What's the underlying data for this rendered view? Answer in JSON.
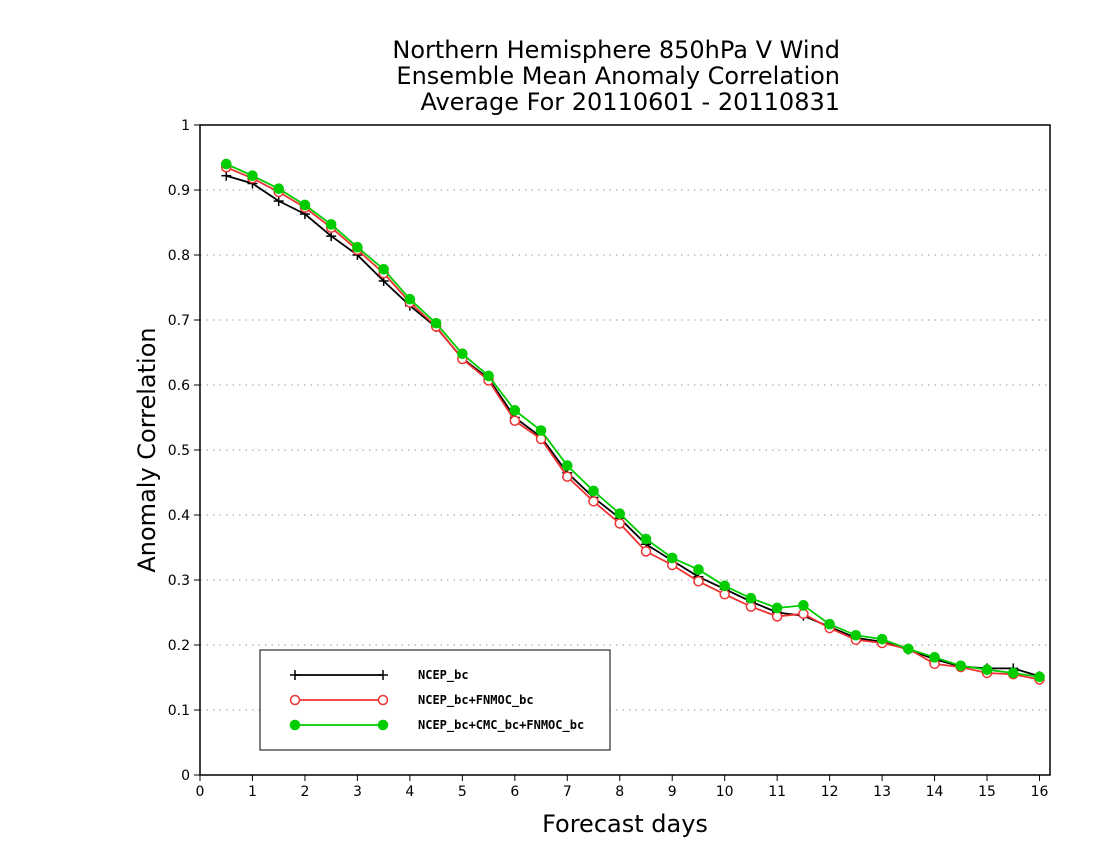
{
  "chart_data": {
    "type": "line",
    "title_lines": [
      "Northern Hemisphere 850hPa V Wind",
      "Ensemble Mean Anomaly Correlation",
      "Average For 20110601 - 20110831"
    ],
    "xlabel": "Forecast days",
    "ylabel": "Anomaly Correlation",
    "xlim": [
      0,
      16.2
    ],
    "ylim": [
      0,
      1
    ],
    "xticks": [
      "0",
      "1",
      "2",
      "3",
      "4",
      "5",
      "6",
      "7",
      "8",
      "9",
      "10",
      "11",
      "12",
      "13",
      "14",
      "15",
      "16"
    ],
    "yticks": [
      "0",
      "0.1",
      "0.2",
      "0.3",
      "0.4",
      "0.5",
      "0.6",
      "0.7",
      "0.8",
      "0.9",
      "1"
    ],
    "grid": "horizontal dotted",
    "legend_position": "bottom-left",
    "x": [
      0.5,
      1,
      1.5,
      2,
      2.5,
      3,
      3.5,
      4,
      4.5,
      5,
      5.5,
      6,
      6.5,
      7,
      7.5,
      8,
      8.5,
      9,
      9.5,
      10,
      10.5,
      11,
      11.5,
      12,
      12.5,
      13,
      13.5,
      14,
      14.5,
      15,
      15.5,
      16
    ],
    "series": [
      {
        "name": "NCEP_bc",
        "color": "#000000",
        "marker": "plus",
        "values": [
          0.922,
          0.91,
          0.883,
          0.863,
          0.829,
          0.8,
          0.76,
          0.722,
          0.689,
          0.641,
          0.61,
          0.55,
          0.52,
          0.465,
          0.427,
          0.395,
          0.355,
          0.33,
          0.305,
          0.286,
          0.267,
          0.25,
          0.245,
          0.228,
          0.211,
          0.205,
          0.193,
          0.178,
          0.167,
          0.164,
          0.164,
          0.152
        ]
      },
      {
        "name": "NCEP_bc+FNMOC_bc",
        "color": "#ee3333",
        "marker": "open-circle",
        "values": [
          0.935,
          0.918,
          0.897,
          0.873,
          0.842,
          0.808,
          0.772,
          0.727,
          0.69,
          0.64,
          0.607,
          0.545,
          0.517,
          0.459,
          0.421,
          0.387,
          0.344,
          0.323,
          0.298,
          0.278,
          0.259,
          0.244,
          0.248,
          0.226,
          0.208,
          0.203,
          0.194,
          0.171,
          0.166,
          0.157,
          0.155,
          0.147
        ]
      },
      {
        "name": "NCEP_bc+CMC_bc+FNMOC_bc",
        "color": "#00cc00",
        "marker": "filled-circle",
        "values": [
          0.94,
          0.922,
          0.902,
          0.877,
          0.847,
          0.812,
          0.778,
          0.732,
          0.695,
          0.648,
          0.614,
          0.561,
          0.53,
          0.476,
          0.437,
          0.402,
          0.363,
          0.334,
          0.316,
          0.291,
          0.272,
          0.257,
          0.261,
          0.232,
          0.215,
          0.209,
          0.194,
          0.181,
          0.168,
          0.162,
          0.157,
          0.151
        ]
      }
    ]
  }
}
